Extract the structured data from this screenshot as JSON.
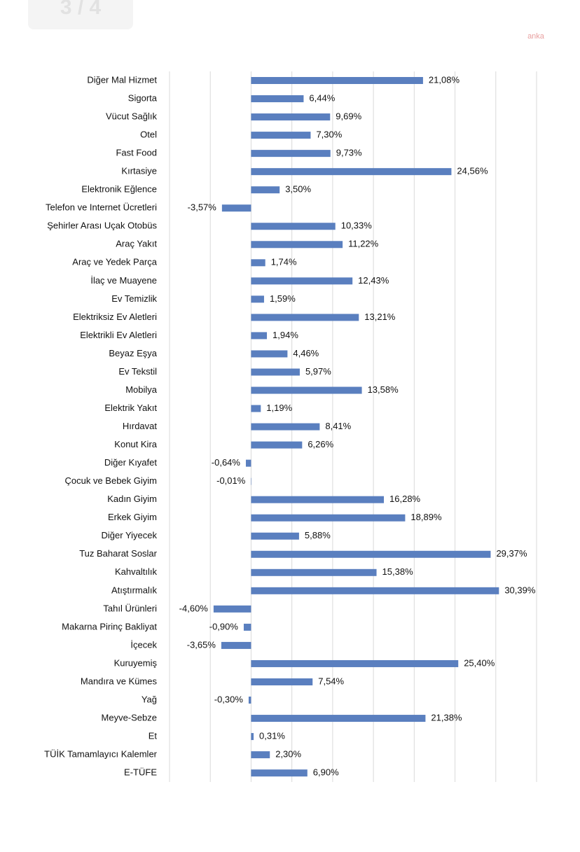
{
  "header": {
    "page_indicator": "3 / 4",
    "logo": "anka"
  },
  "chart_data": {
    "type": "bar",
    "orientation": "horizontal",
    "color": "#5a7fbf",
    "grid": true,
    "categories": [
      "Diğer Mal Hizmet",
      "Sigorta",
      "Vücut Sağlık",
      "Otel",
      "Fast Food",
      "Kırtasiye",
      "Elektronik Eğlence",
      "Telefon ve Internet Ücretleri",
      "Şehirler Arası Uçak Otobüs",
      "Araç Yakıt",
      "Araç ve Yedek Parça",
      "İlaç ve Muayene",
      "Ev Temizlik",
      "Elektriksiz Ev Aletleri",
      "Elektrikli Ev Aletleri",
      "Beyaz Eşya",
      "Ev Tekstil",
      "Mobilya",
      "Elektrik Yakıt",
      "Hırdavat",
      "Konut Kira",
      "Diğer Kıyafet",
      "Çocuk ve Bebek Giyim",
      "Kadın Giyim",
      "Erkek Giyim",
      "Diğer Yiyecek",
      "Tuz Baharat Soslar",
      "Kahvaltılık",
      "Atıştırmalık",
      "Tahıl Ürünleri",
      "Makarna Pirinç Bakliyat",
      "İçecek",
      "Kuruyemiş",
      "Mandıra ve Kümes",
      "Yağ",
      "Meyve-Sebze",
      "Et",
      "TÜİK Tamamlayıcı Kalemler",
      "E-TÜFE"
    ],
    "values": [
      21.08,
      6.44,
      9.69,
      7.3,
      9.73,
      24.56,
      3.5,
      -3.57,
      10.33,
      11.22,
      1.74,
      12.43,
      1.59,
      13.21,
      1.94,
      4.46,
      5.97,
      13.58,
      1.19,
      8.41,
      6.26,
      -0.64,
      -0.01,
      16.28,
      18.89,
      5.88,
      29.37,
      15.38,
      30.39,
      -4.6,
      -0.9,
      -3.65,
      25.4,
      7.54,
      -0.3,
      21.38,
      0.31,
      2.3,
      6.9
    ],
    "value_labels": [
      "21,08%",
      "6,44%",
      "9,69%",
      "7,30%",
      "9,73%",
      "24,56%",
      "3,50%",
      "-3,57%",
      "10,33%",
      "11,22%",
      "1,74%",
      "12,43%",
      "1,59%",
      "13,21%",
      "1,94%",
      "4,46%",
      "5,97%",
      "13,58%",
      "1,19%",
      "8,41%",
      "6,26%",
      "-0,64%",
      "-0,01%",
      "16,28%",
      "18,89%",
      "5,88%",
      "29,37%",
      "15,38%",
      "30,39%",
      "-4,60%",
      "-0,90%",
      "-3,65%",
      "25,40%",
      "7,54%",
      "-0,30%",
      "21,38%",
      "0,31%",
      "2,30%",
      "6,90%"
    ],
    "xlim": [
      -10,
      35
    ],
    "xticks": [
      -10,
      -5,
      0,
      5,
      10,
      15,
      20,
      25,
      30,
      35
    ]
  }
}
